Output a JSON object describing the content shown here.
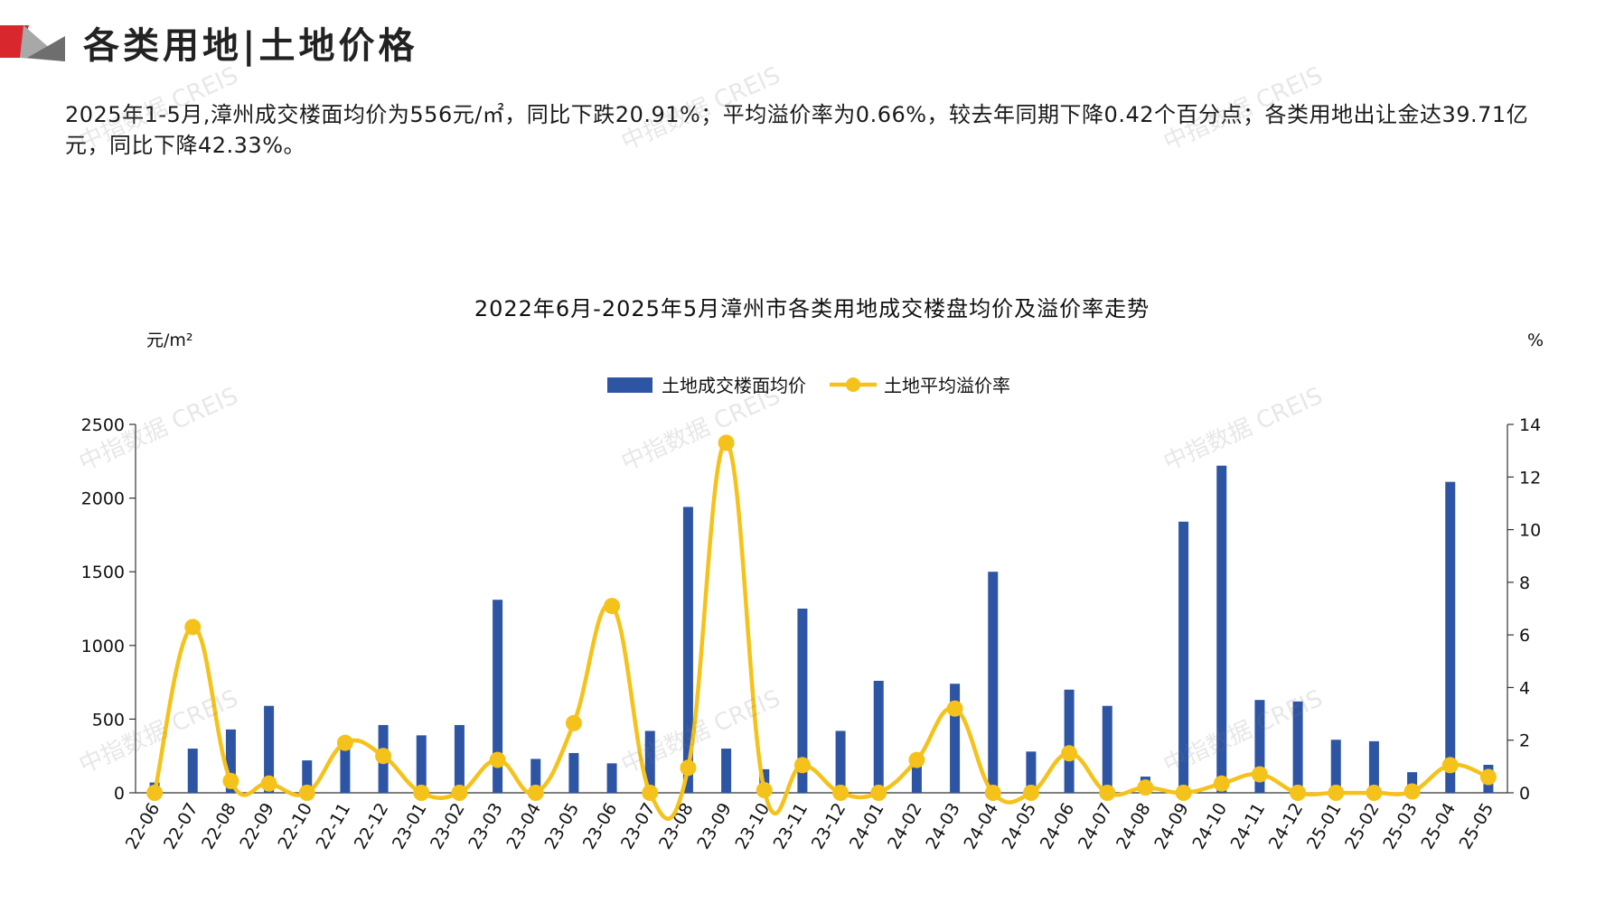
{
  "header": {
    "title": "各类用地|土地价格"
  },
  "summary": "2025年1-5月,漳州成交楼面均价为556元/㎡，同比下跌20.91%；平均溢价率为0.66%，较去年同期下降0.42个百分点；各类用地出让金达39.71亿元，同比下降42.33%。",
  "watermark": "中指数据 CREIS",
  "colors": {
    "bar": "#2E55A4",
    "line": "#F5C21B",
    "accent_red": "#D9272E",
    "accent_gray": "#9A9A9A"
  },
  "chart_data": {
    "type": "bar",
    "title": "2022年6月-2025年5月漳州市各类用地成交楼盘均价及溢价率走势",
    "ylabel_left": "元/m²",
    "ylabel_right": "%",
    "ylim_left": [
      0,
      2500
    ],
    "ylim_right": [
      0,
      14
    ],
    "yticks_left": [
      0,
      500,
      1000,
      1500,
      2000,
      2500
    ],
    "yticks_right": [
      0,
      2,
      4,
      6,
      8,
      10,
      12,
      14
    ],
    "legend_position": "top-center",
    "categories": [
      "22-06",
      "22-07",
      "22-08",
      "22-09",
      "22-10",
      "22-11",
      "22-12",
      "23-01",
      "23-02",
      "23-03",
      "23-04",
      "23-05",
      "23-06",
      "23-07",
      "23-08",
      "23-09",
      "23-10",
      "23-11",
      "23-12",
      "24-01",
      "24-02",
      "24-03",
      "24-04",
      "24-05",
      "24-06",
      "24-07",
      "24-08",
      "24-09",
      "24-10",
      "24-11",
      "24-12",
      "25-01",
      "25-02",
      "25-03",
      "25-04",
      "25-05"
    ],
    "series": [
      {
        "name": "土地成交楼面均价",
        "type": "bar",
        "axis": "left",
        "values": [
          70,
          300,
          430,
          590,
          220,
          330,
          460,
          390,
          460,
          1310,
          230,
          270,
          200,
          420,
          1940,
          300,
          160,
          1250,
          420,
          760,
          210,
          740,
          1500,
          280,
          700,
          590,
          110,
          1840,
          2220,
          630,
          620,
          360,
          350,
          140,
          2110,
          190
        ]
      },
      {
        "name": "土地平均溢价率",
        "type": "line",
        "axis": "right",
        "values": [
          0,
          6.3,
          0.45,
          0.35,
          0,
          1.9,
          1.4,
          0,
          0,
          1.25,
          0,
          2.65,
          7.1,
          0,
          0.95,
          13.3,
          0.1,
          1.05,
          0,
          0,
          1.25,
          3.2,
          0,
          0,
          1.5,
          0,
          0.2,
          0,
          0.35,
          0.7,
          0,
          0,
          0,
          0.05,
          1.05,
          0.6
        ]
      }
    ]
  }
}
